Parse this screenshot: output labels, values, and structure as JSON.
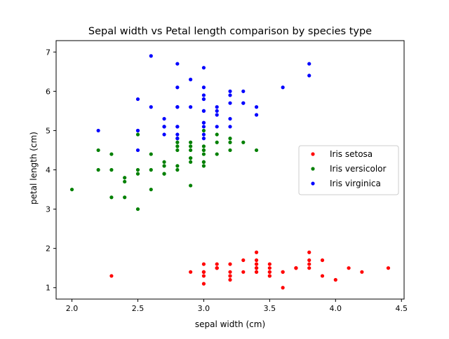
{
  "chart_data": {
    "type": "scatter",
    "title": "Sepal width vs Petal length comparison by species type",
    "xlabel": "sepal width (cm)",
    "ylabel": "petal length (cm)",
    "xlim": [
      1.88,
      4.52
    ],
    "ylim": [
      0.71,
      7.29
    ],
    "xticks": [
      "2.0",
      "2.5",
      "3.0",
      "3.5",
      "4.0",
      "4.5"
    ],
    "yticks": [
      "1",
      "2",
      "3",
      "4",
      "5",
      "6",
      "7"
    ],
    "grid": false,
    "legend": "center-right",
    "series": [
      {
        "name": "Iris setosa",
        "color": "#ff0000",
        "points": [
          [
            3.5,
            1.4
          ],
          [
            3.0,
            1.4
          ],
          [
            3.2,
            1.3
          ],
          [
            3.1,
            1.5
          ],
          [
            3.6,
            1.4
          ],
          [
            3.9,
            1.7
          ],
          [
            3.4,
            1.4
          ],
          [
            3.4,
            1.5
          ],
          [
            2.9,
            1.4
          ],
          [
            3.1,
            1.5
          ],
          [
            3.7,
            1.5
          ],
          [
            3.4,
            1.6
          ],
          [
            3.0,
            1.4
          ],
          [
            3.0,
            1.1
          ],
          [
            4.0,
            1.2
          ],
          [
            4.4,
            1.5
          ],
          [
            3.9,
            1.3
          ],
          [
            3.5,
            1.4
          ],
          [
            3.8,
            1.7
          ],
          [
            3.8,
            1.5
          ],
          [
            3.4,
            1.7
          ],
          [
            3.7,
            1.5
          ],
          [
            3.6,
            1.0
          ],
          [
            3.3,
            1.7
          ],
          [
            3.4,
            1.9
          ],
          [
            3.0,
            1.6
          ],
          [
            3.4,
            1.6
          ],
          [
            3.5,
            1.5
          ],
          [
            3.4,
            1.4
          ],
          [
            3.2,
            1.6
          ],
          [
            3.1,
            1.6
          ],
          [
            3.4,
            1.5
          ],
          [
            4.1,
            1.5
          ],
          [
            4.2,
            1.4
          ],
          [
            3.1,
            1.5
          ],
          [
            3.2,
            1.2
          ],
          [
            3.5,
            1.3
          ],
          [
            3.6,
            1.4
          ],
          [
            3.0,
            1.3
          ],
          [
            3.4,
            1.5
          ],
          [
            3.5,
            1.3
          ],
          [
            2.3,
            1.3
          ],
          [
            3.2,
            1.3
          ],
          [
            3.5,
            1.6
          ],
          [
            3.8,
            1.9
          ],
          [
            3.0,
            1.4
          ],
          [
            3.8,
            1.6
          ],
          [
            3.2,
            1.4
          ],
          [
            3.7,
            1.5
          ],
          [
            3.3,
            1.4
          ]
        ]
      },
      {
        "name": "Iris versicolor",
        "color": "#008000",
        "points": [
          [
            3.2,
            4.7
          ],
          [
            3.2,
            4.5
          ],
          [
            3.1,
            4.9
          ],
          [
            2.3,
            4.0
          ],
          [
            2.8,
            4.6
          ],
          [
            2.8,
            4.5
          ],
          [
            3.3,
            4.7
          ],
          [
            2.4,
            3.3
          ],
          [
            2.9,
            4.6
          ],
          [
            2.7,
            3.9
          ],
          [
            2.0,
            3.5
          ],
          [
            3.0,
            4.2
          ],
          [
            2.2,
            4.0
          ],
          [
            2.9,
            4.7
          ],
          [
            2.9,
            3.6
          ],
          [
            3.1,
            4.4
          ],
          [
            3.0,
            4.5
          ],
          [
            2.7,
            4.1
          ],
          [
            2.2,
            4.5
          ],
          [
            2.5,
            3.9
          ],
          [
            3.2,
            4.8
          ],
          [
            2.8,
            4.0
          ],
          [
            2.5,
            4.9
          ],
          [
            2.8,
            4.7
          ],
          [
            2.9,
            4.3
          ],
          [
            3.0,
            4.4
          ],
          [
            2.8,
            4.8
          ],
          [
            3.0,
            5.0
          ],
          [
            2.9,
            4.5
          ],
          [
            2.6,
            3.5
          ],
          [
            2.4,
            3.8
          ],
          [
            2.4,
            3.7
          ],
          [
            2.7,
            3.9
          ],
          [
            2.7,
            5.1
          ],
          [
            3.0,
            4.5
          ],
          [
            3.4,
            4.5
          ],
          [
            3.1,
            4.7
          ],
          [
            2.3,
            4.4
          ],
          [
            3.0,
            4.1
          ],
          [
            2.5,
            4.0
          ],
          [
            2.6,
            4.4
          ],
          [
            3.0,
            4.6
          ],
          [
            2.6,
            4.0
          ],
          [
            2.3,
            3.3
          ],
          [
            2.7,
            4.2
          ],
          [
            3.0,
            4.2
          ],
          [
            2.9,
            4.2
          ],
          [
            2.9,
            4.3
          ],
          [
            2.5,
            3.0
          ],
          [
            2.8,
            4.1
          ]
        ]
      },
      {
        "name": "Iris virginica",
        "color": "#0000ff",
        "points": [
          [
            3.3,
            6.0
          ],
          [
            2.7,
            5.1
          ],
          [
            3.0,
            5.9
          ],
          [
            2.9,
            5.6
          ],
          [
            3.0,
            5.8
          ],
          [
            3.0,
            6.6
          ],
          [
            2.5,
            4.5
          ],
          [
            2.9,
            6.3
          ],
          [
            2.5,
            5.8
          ],
          [
            3.6,
            6.1
          ],
          [
            3.2,
            5.1
          ],
          [
            2.7,
            5.3
          ],
          [
            3.0,
            5.5
          ],
          [
            2.5,
            5.0
          ],
          [
            2.8,
            5.1
          ],
          [
            3.2,
            5.3
          ],
          [
            3.0,
            5.5
          ],
          [
            3.8,
            6.7
          ],
          [
            2.6,
            6.9
          ],
          [
            2.2,
            5.0
          ],
          [
            3.2,
            5.7
          ],
          [
            2.8,
            4.9
          ],
          [
            2.8,
            6.7
          ],
          [
            2.7,
            4.9
          ],
          [
            3.3,
            5.7
          ],
          [
            3.2,
            6.0
          ],
          [
            2.8,
            4.8
          ],
          [
            3.0,
            4.9
          ],
          [
            2.8,
            5.6
          ],
          [
            3.0,
            5.8
          ],
          [
            2.8,
            6.1
          ],
          [
            3.8,
            6.4
          ],
          [
            2.8,
            5.6
          ],
          [
            2.8,
            5.1
          ],
          [
            2.6,
            5.6
          ],
          [
            3.0,
            6.1
          ],
          [
            3.4,
            5.6
          ],
          [
            3.1,
            5.5
          ],
          [
            3.0,
            4.8
          ],
          [
            3.1,
            5.4
          ],
          [
            3.1,
            5.6
          ],
          [
            3.1,
            5.1
          ],
          [
            2.7,
            5.1
          ],
          [
            3.2,
            5.9
          ],
          [
            3.3,
            5.7
          ],
          [
            3.0,
            5.2
          ],
          [
            2.5,
            5.0
          ],
          [
            3.0,
            5.2
          ],
          [
            3.4,
            5.4
          ],
          [
            3.0,
            5.1
          ]
        ]
      }
    ]
  }
}
